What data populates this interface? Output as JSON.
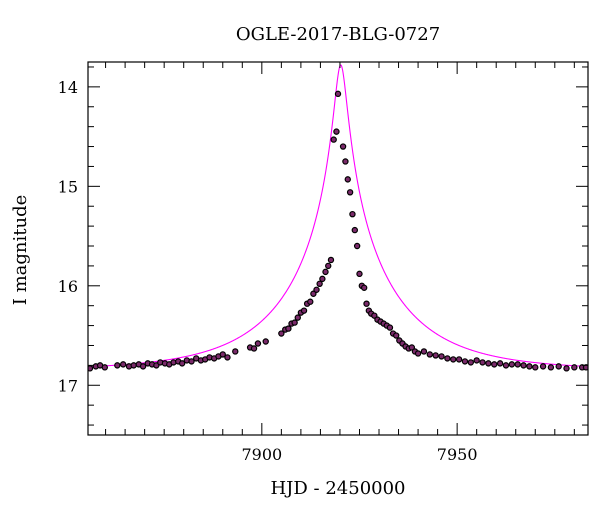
{
  "chart_data": {
    "type": "scatter",
    "title": "OGLE-2017-BLG-0727",
    "xlabel": "HJD - 2450000",
    "ylabel": "I magnitude",
    "xlim": [
      7855.5,
      7983.5
    ],
    "ylim": [
      17.5,
      13.75
    ],
    "y_axis_inverted": true,
    "x_ticks": [
      7900,
      7950
    ],
    "y_ticks": [
      14,
      15,
      16,
      17
    ],
    "grid": false,
    "model": {
      "type": "microlensing-fit",
      "t0": 7920.2,
      "tE": 27,
      "u0": 0.055,
      "baseline_mag": 16.85,
      "peak_mag": 13.78,
      "color": "#ff00ff"
    },
    "points_color": "#000000",
    "points_fill": "#7a2a6a",
    "series": [
      {
        "x": [
          7856.0,
          7857.5,
          7858.6,
          7859.8,
          7863.0,
          7864.5,
          7866.0,
          7867.2,
          7868.5,
          7869.6,
          7870.8,
          7871.9,
          7873.0,
          7874.0,
          7875.2,
          7876.3,
          7877.4,
          7878.6,
          7879.6,
          7880.8,
          7882.0,
          7883.2,
          7884.4,
          7885.5,
          7886.6,
          7887.8,
          7888.9,
          7890.0,
          7891.2,
          7893.2,
          7897.0,
          7898.0,
          7899.0,
          7901.0,
          7905.0,
          7906.0,
          7906.8,
          7907.6,
          7908.4,
          7909.2,
          7910.0,
          7910.8,
          7911.6,
          7912.4,
          7913.2,
          7914.0,
          7914.8,
          7915.5,
          7916.3,
          7917.0,
          7917.7,
          7918.4,
          7919.1,
          7919.5,
          7920.8,
          7921.4,
          7922.0,
          7922.6,
          7923.2,
          7923.8,
          7924.4,
          7925.0,
          7925.6,
          7926.2,
          7926.8,
          7927.4,
          7928.0,
          7928.8,
          7929.6,
          7930.4,
          7931.2,
          7932.0,
          7932.8,
          7933.6,
          7934.4,
          7935.2,
          7936.0,
          7936.8,
          7937.6,
          7938.4,
          7939.2,
          7940.0,
          7941.5,
          7943.0,
          7944.5,
          7946.0,
          7947.5,
          7949.0,
          7950.5,
          7952.0,
          7953.5,
          7955.0,
          7956.5,
          7958.0,
          7959.5,
          7961.0,
          7962.5,
          7964.0,
          7965.5,
          7967.0,
          7968.5,
          7970.0,
          7972.0,
          7974.0,
          7976.0,
          7978.0,
          7980.0,
          7982.0,
          7983.0
        ],
        "y": [
          16.83,
          16.81,
          16.8,
          16.82,
          16.8,
          16.79,
          16.81,
          16.8,
          16.79,
          16.81,
          16.78,
          16.79,
          16.8,
          16.77,
          16.78,
          16.79,
          16.77,
          16.76,
          16.78,
          16.75,
          16.76,
          16.73,
          16.75,
          16.74,
          16.72,
          16.73,
          16.71,
          16.69,
          16.72,
          16.66,
          16.62,
          16.63,
          16.58,
          16.56,
          16.48,
          16.44,
          16.43,
          16.38,
          16.37,
          16.32,
          16.27,
          16.25,
          16.18,
          16.16,
          16.08,
          16.04,
          15.98,
          15.93,
          15.86,
          15.8,
          15.74,
          14.53,
          14.45,
          14.07,
          14.6,
          14.75,
          14.93,
          15.06,
          15.28,
          15.44,
          15.6,
          15.88,
          16.0,
          16.02,
          16.18,
          16.25,
          16.28,
          16.3,
          16.34,
          16.36,
          16.38,
          16.4,
          16.42,
          16.48,
          16.5,
          16.55,
          16.58,
          16.61,
          16.63,
          16.62,
          16.66,
          16.68,
          16.66,
          16.69,
          16.7,
          16.71,
          16.73,
          16.74,
          16.74,
          16.76,
          16.77,
          16.75,
          16.77,
          16.78,
          16.79,
          16.78,
          16.8,
          16.79,
          16.79,
          16.8,
          16.81,
          16.82,
          16.81,
          16.82,
          16.81,
          16.83,
          16.82,
          16.82,
          16.82
        ]
      }
    ]
  }
}
